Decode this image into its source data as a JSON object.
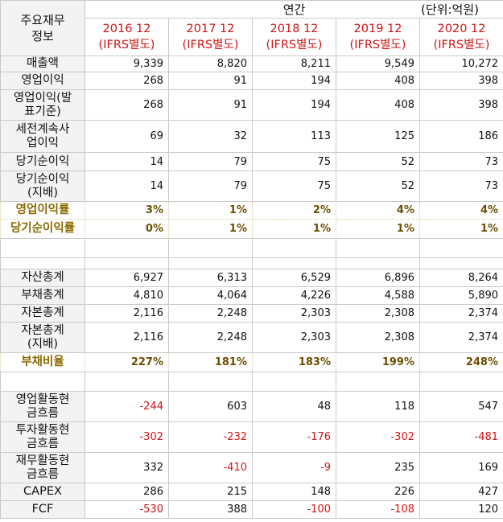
{
  "header": {
    "corner": "주요재무\n정보",
    "period": "연간",
    "unit": "(단위:억원)",
    "columns": [
      {
        "year": "2016 12",
        "basis": "(IFRS별도)"
      },
      {
        "year": "2017 12",
        "basis": "(IFRS별도)"
      },
      {
        "year": "2018 12",
        "basis": "(IFRS별도)"
      },
      {
        "year": "2019 12",
        "basis": "(IFRS별도)"
      },
      {
        "year": "2020 12",
        "basis": "(IFRS별도)"
      }
    ]
  },
  "rows": [
    {
      "label": "매출액",
      "values": [
        "9,339",
        "8,820",
        "8,211",
        "9,549",
        "10,272"
      ]
    },
    {
      "label": "영업이익",
      "values": [
        "268",
        "91",
        "194",
        "408",
        "398"
      ]
    },
    {
      "label": "영업이익(발\n표기준)",
      "values": [
        "268",
        "91",
        "194",
        "408",
        "398"
      ]
    },
    {
      "label": "세전계속사\n업이익",
      "values": [
        "69",
        "32",
        "113",
        "125",
        "186"
      ]
    },
    {
      "label": "당기순이익",
      "values": [
        "14",
        "79",
        "75",
        "52",
        "73"
      ]
    },
    {
      "label": "당기순이익\n(지배)",
      "values": [
        "14",
        "79",
        "75",
        "52",
        "73"
      ]
    },
    {
      "label": "영업이익률",
      "values": [
        "3%",
        "1%",
        "2%",
        "4%",
        "4%"
      ]
    },
    {
      "label": "당기순이익률",
      "values": [
        "0%",
        "1%",
        "1%",
        "1%",
        "1%"
      ]
    },
    {
      "label": "자산총계",
      "values": [
        "6,927",
        "6,313",
        "6,529",
        "6,896",
        "8,264"
      ]
    },
    {
      "label": "부채총계",
      "values": [
        "4,810",
        "4,064",
        "4,226",
        "4,588",
        "5,890"
      ]
    },
    {
      "label": "자본총계",
      "values": [
        "2,116",
        "2,248",
        "2,303",
        "2,308",
        "2,374"
      ]
    },
    {
      "label": "자본총계\n(지배)",
      "values": [
        "2,116",
        "2,248",
        "2,303",
        "2,308",
        "2,374"
      ]
    },
    {
      "label": "부채비율",
      "values": [
        "227%",
        "181%",
        "183%",
        "199%",
        "248%"
      ]
    },
    {
      "label": "영업활동현\n금흐름",
      "values": [
        "-244",
        "603",
        "48",
        "118",
        "547"
      ]
    },
    {
      "label": "투자활동현\n금흐름",
      "values": [
        "-302",
        "-232",
        "-176",
        "-302",
        "-481"
      ]
    },
    {
      "label": "재무활동현\n금흐름",
      "values": [
        "332",
        "-410",
        "-9",
        "235",
        "169"
      ]
    },
    {
      "label": "CAPEX",
      "values": [
        "286",
        "215",
        "148",
        "226",
        "427"
      ]
    },
    {
      "label": "FCF",
      "values": [
        "-530",
        "388",
        "-100",
        "-108",
        "120"
      ]
    }
  ]
}
